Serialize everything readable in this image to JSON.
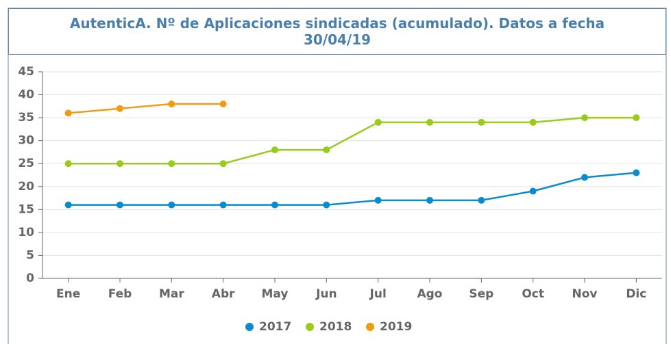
{
  "chart_data": {
    "type": "line",
    "title": "AutenticA. Nº de Aplicaciones sindicadas (acumulado). Datos a fecha 30/04/19",
    "categories": [
      "Ene",
      "Feb",
      "Mar",
      "Abr",
      "May",
      "Jun",
      "Jul",
      "Ago",
      "Sep",
      "Oct",
      "Nov",
      "Dic"
    ],
    "series": [
      {
        "name": "2017",
        "color": "#0a8ccc",
        "values": [
          16,
          16,
          16,
          16,
          16,
          16,
          17,
          17,
          17,
          19,
          22,
          23
        ]
      },
      {
        "name": "2018",
        "color": "#97cc1a",
        "values": [
          25,
          25,
          25,
          25,
          28,
          28,
          34,
          34,
          34,
          34,
          35,
          35
        ]
      },
      {
        "name": "2019",
        "color": "#f29a11",
        "values": [
          36,
          37,
          38,
          38,
          null,
          null,
          null,
          null,
          null,
          null,
          null,
          null
        ]
      }
    ],
    "ylim": [
      0,
      45
    ],
    "yticks": [
      0,
      5,
      10,
      15,
      20,
      25,
      30,
      35,
      40,
      45
    ],
    "grid": true,
    "legend": "bottom"
  }
}
